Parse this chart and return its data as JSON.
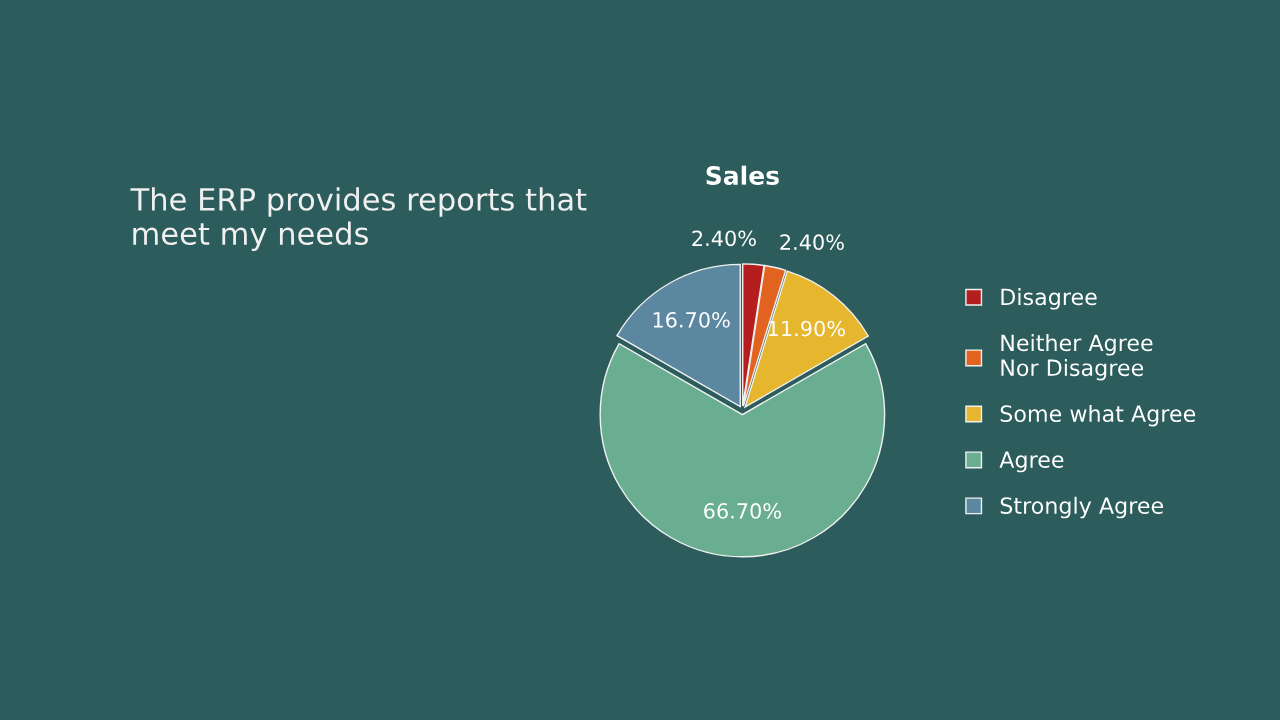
{
  "chart_data": {
    "type": "pie",
    "title": "Sales",
    "annotations": [
      "The ERP provides reports that meet my needs"
    ],
    "categories": [
      "Disagree",
      "Neither Agree Nor Disagree",
      "Some what Agree",
      "Agree",
      "Strongly Agree"
    ],
    "values": [
      2.4,
      2.4,
      11.9,
      66.7,
      16.7
    ],
    "value_labels": [
      "2.40%",
      "2.40%",
      "11.90%",
      "66.70%",
      "16.70%"
    ],
    "colors": [
      "#b41e1e",
      "#e2631f",
      "#e6b72e",
      "#6aae92",
      "#5b87a0"
    ],
    "legend": "right"
  }
}
